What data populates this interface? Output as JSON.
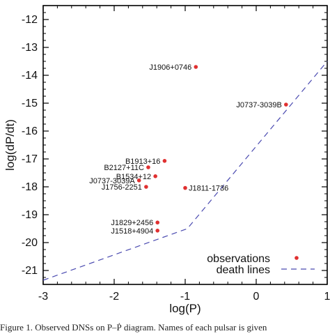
{
  "chart_data": {
    "type": "scatter",
    "xlabel": "log(P)",
    "ylabel": "log(dP/dt)",
    "xlim": [
      -3,
      1
    ],
    "ylim": [
      -21.5,
      -11.5
    ],
    "xticks": [
      "-3",
      "-2",
      "-1",
      "0",
      "1"
    ],
    "yticks": [
      "-21",
      "-20",
      "-19",
      "-18",
      "-17",
      "-16",
      "-15",
      "-14",
      "-13",
      "-12"
    ],
    "series": [
      {
        "name": "observations",
        "color": "#e03030",
        "points": [
          {
            "label": "J1906+0746",
            "x": -0.85,
            "y": -13.7
          },
          {
            "label": "J0737-3039B",
            "x": 0.42,
            "y": -15.05
          },
          {
            "label": "B1913+16",
            "x": -1.29,
            "y": -17.07
          },
          {
            "label": "B2127+11C",
            "x": -1.52,
            "y": -17.3
          },
          {
            "label": "B1534+12",
            "x": -1.42,
            "y": -17.62
          },
          {
            "label": "J0737-3039A",
            "x": -1.65,
            "y": -17.77
          },
          {
            "label": "J1756-2251",
            "x": -1.55,
            "y": -18.0
          },
          {
            "label": "J1811-1736",
            "x": -1.0,
            "y": -18.04
          },
          {
            "label": "J1829+2456",
            "x": -1.39,
            "y": -19.28
          },
          {
            "label": "J1518+4904",
            "x": -1.39,
            "y": -19.57
          }
        ]
      },
      {
        "name": "death lines",
        "color": "#4a4ab0",
        "points": [
          {
            "x": -3,
            "y": -21.35
          },
          {
            "x": -0.97,
            "y": -19.5
          },
          {
            "x": 1,
            "y": -13.5
          }
        ]
      }
    ],
    "legend": "bottom-right"
  },
  "caption": "Figure 1. Observed DNSs on P–Ṗ diagram. Names of each pulsar is given"
}
